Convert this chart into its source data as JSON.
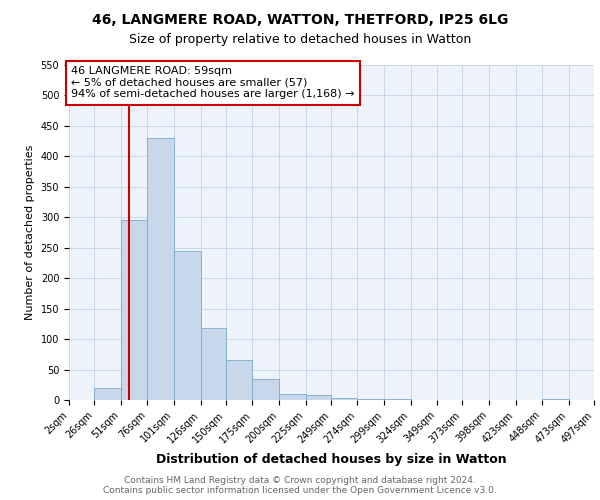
{
  "title1": "46, LANGMERE ROAD, WATTON, THETFORD, IP25 6LG",
  "title2": "Size of property relative to detached houses in Watton",
  "xlabel": "Distribution of detached houses by size in Watton",
  "ylabel": "Number of detached properties",
  "bin_edges": [
    2,
    26,
    51,
    76,
    101,
    126,
    150,
    175,
    200,
    225,
    249,
    274,
    299,
    324,
    349,
    373,
    398,
    423,
    448,
    473,
    497
  ],
  "bar_heights": [
    0,
    20,
    295,
    430,
    245,
    118,
    65,
    35,
    10,
    8,
    3,
    2,
    2,
    0,
    0,
    0,
    0,
    0,
    2,
    0,
    10
  ],
  "bar_color": "#c8d8ea",
  "bar_edge_color": "#7baaca",
  "grid_color": "#c8d8ea",
  "background_color": "#eef3fb",
  "property_line_x": 59,
  "annotation_line1": "46 LANGMERE ROAD: 59sqm",
  "annotation_line2": "← 5% of detached houses are smaller (57)",
  "annotation_line3": "94% of semi-detached houses are larger (1,168) →",
  "annotation_box_color": "#cc0000",
  "ylim": [
    0,
    550
  ],
  "yticks": [
    0,
    50,
    100,
    150,
    200,
    250,
    300,
    350,
    400,
    450,
    500,
    550
  ],
  "xtick_labels": [
    "2sqm",
    "26sqm",
    "51sqm",
    "76sqm",
    "101sqm",
    "126sqm",
    "150sqm",
    "175sqm",
    "200sqm",
    "225sqm",
    "249sqm",
    "274sqm",
    "299sqm",
    "324sqm",
    "349sqm",
    "373sqm",
    "398sqm",
    "423sqm",
    "448sqm",
    "473sqm",
    "497sqm"
  ],
  "footer_text": "Contains HM Land Registry data © Crown copyright and database right 2024.\nContains public sector information licensed under the Open Government Licence v3.0.",
  "title1_fontsize": 10,
  "title2_fontsize": 9,
  "xlabel_fontsize": 9,
  "ylabel_fontsize": 8,
  "tick_fontsize": 7,
  "annotation_fontsize": 8,
  "footer_fontsize": 6.5
}
